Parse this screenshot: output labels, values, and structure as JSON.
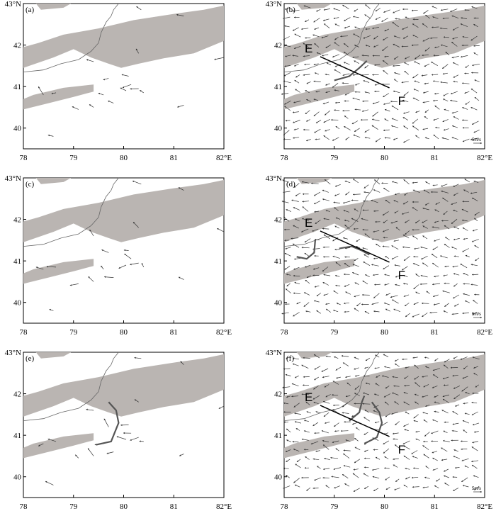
{
  "figure": {
    "panels": [
      {
        "id": "a",
        "label": "(a)",
        "vectors": "sparse",
        "section_line": false,
        "curves": []
      },
      {
        "id": "b",
        "label": "(b)",
        "vectors": "dense",
        "section_line": true,
        "curves": [
          "b1"
        ]
      },
      {
        "id": "c",
        "label": "(c)",
        "vectors": "sparse",
        "section_line": false,
        "curves": []
      },
      {
        "id": "d",
        "label": "(d)",
        "vectors": "dense",
        "section_line": true,
        "curves": [
          "d1",
          "d2"
        ]
      },
      {
        "id": "e",
        "label": "(e)",
        "vectors": "sparse",
        "section_line": false,
        "curves": [
          "e1"
        ]
      },
      {
        "id": "f",
        "label": "(f)",
        "vectors": "dense",
        "section_line": true,
        "curves": [
          "f1",
          "f2"
        ]
      }
    ],
    "axes": {
      "x_ticks": [
        "78",
        "79",
        "80",
        "81",
        "82°E"
      ],
      "y_ticks": [
        "43°N",
        "42",
        "41",
        "40"
      ],
      "x_values": [
        78,
        79,
        80,
        81,
        82
      ],
      "y_values": [
        43,
        42,
        41,
        40
      ],
      "lon_range": [
        78,
        82
      ],
      "lat_range": [
        39.5,
        43
      ]
    },
    "section": {
      "start_label": "E",
      "end_label": "F",
      "start": {
        "lon": 78.72,
        "lat": 41.72
      },
      "end": {
        "lon": 80.1,
        "lat": 40.97
      }
    },
    "scale_label": "5m/s",
    "colors": {
      "terrain": "#bab5b2",
      "vectors": "#333333",
      "border": "#666666"
    }
  }
}
